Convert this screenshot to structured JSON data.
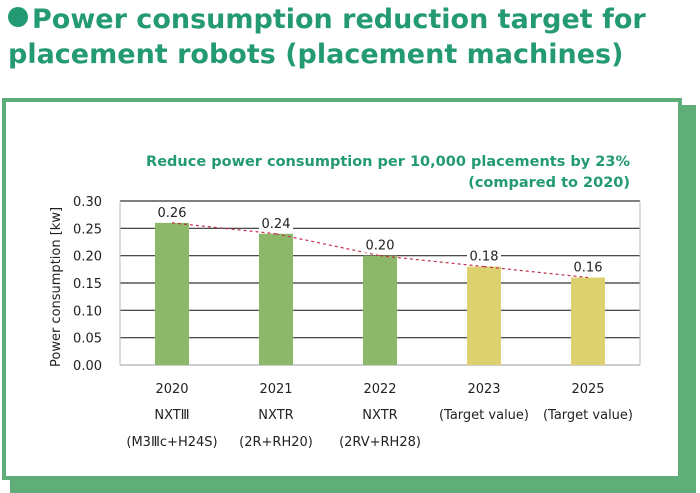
{
  "header": {
    "line1": "Power consumption reduction target for",
    "line2": "placement robots (placement machines)"
  },
  "chart_data": {
    "type": "bar",
    "title": "",
    "subtitle_line1": "Reduce power consumption per 10,000 placements by 23%",
    "subtitle_line2": "(compared to 2020)",
    "xlabel": "",
    "ylabel": "Power consumption [kw]",
    "ylim": [
      0,
      0.3
    ],
    "yticks": [
      "0.00",
      "0.05",
      "0.10",
      "0.15",
      "0.20",
      "0.25",
      "0.30"
    ],
    "grid": true,
    "categories": [
      {
        "year": "2020",
        "line2": "NXTⅢ",
        "line3": "(M3Ⅲc+H24S)"
      },
      {
        "year": "2021",
        "line2": "NXTR",
        "line3": "(2R+RH20)"
      },
      {
        "year": "2022",
        "line2": "NXTR",
        "line3": "(2RV+RH28)"
      },
      {
        "year": "2023",
        "line2": "(Target value)",
        "line3": ""
      },
      {
        "year": "2025",
        "line2": "(Target value)",
        "line3": ""
      }
    ],
    "values": [
      0.26,
      0.24,
      0.2,
      0.18,
      0.16
    ],
    "value_labels": [
      "0.26",
      "0.24",
      "0.20",
      "0.18",
      "0.16"
    ],
    "bar_colors": [
      "#8db86a",
      "#8db86a",
      "#8db86a",
      "#ddd06f",
      "#ddd06f"
    ],
    "trend_color": "#c0304a"
  }
}
